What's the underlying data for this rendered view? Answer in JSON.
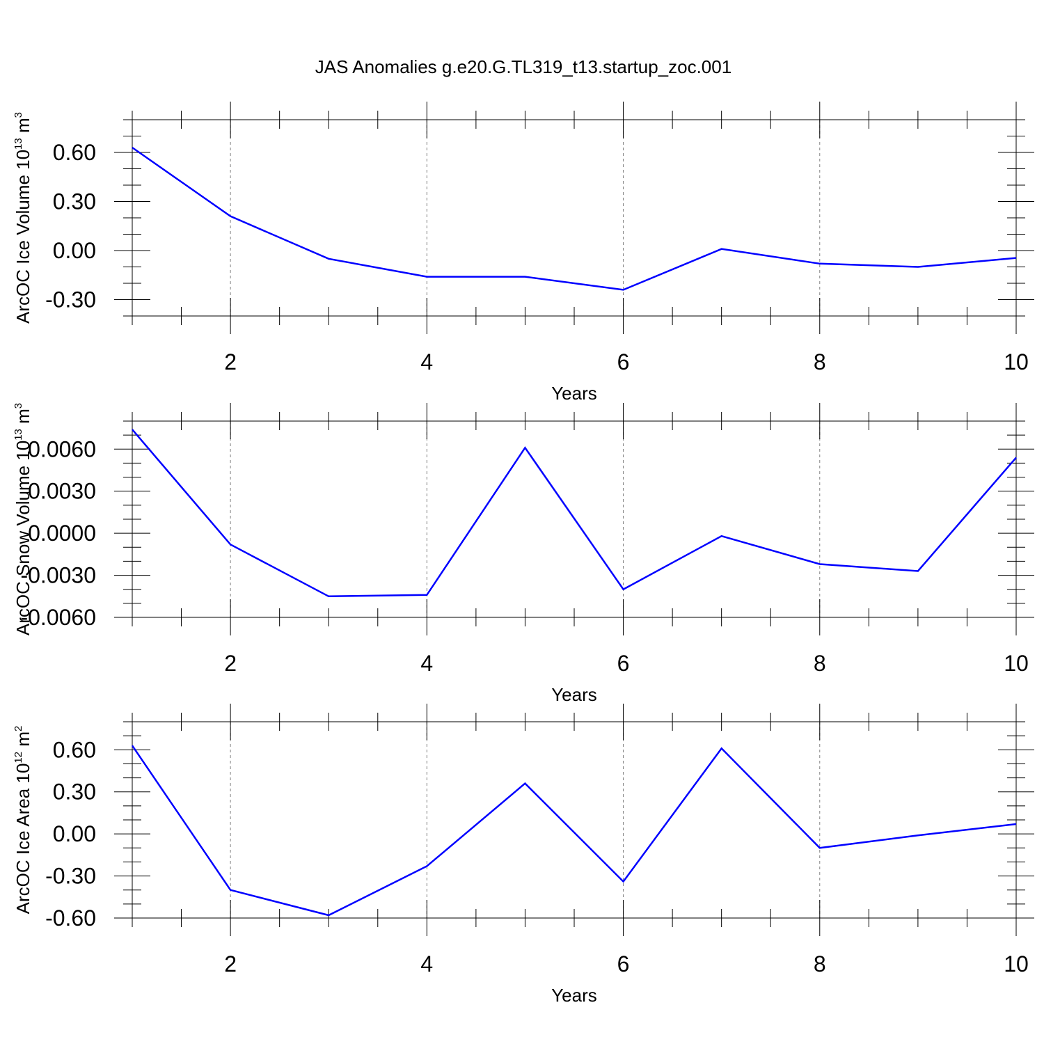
{
  "title": "JAS Anomalies g.e20.G.TL319_t13.startup_zoc.001",
  "colors": {
    "line": "#0000ff",
    "axis": "#000000",
    "grid": "#808080"
  },
  "chart_data": [
    {
      "type": "line",
      "xlabel": "Years",
      "ylabel": {
        "prefix": "ArcOC Ice Volume 10",
        "exp": "13",
        "unit": " m",
        "unit_exp": "3"
      },
      "xlim": [
        1,
        10
      ],
      "ylim": [
        -0.4,
        0.8
      ],
      "xticks": [
        2,
        4,
        6,
        8,
        10
      ],
      "xtick_labels": [
        "2",
        "4",
        "6",
        "8",
        "10"
      ],
      "yticks": [
        0.6,
        0.3,
        0.0,
        -0.3
      ],
      "ytick_labels": [
        "0.60",
        "0.30",
        "0.00",
        "-0.30"
      ],
      "grid": "vertical dashed at major x ticks",
      "series": [
        {
          "x": [
            1,
            2,
            3,
            4,
            5,
            6,
            7,
            8,
            9,
            10
          ],
          "values": [
            0.63,
            0.21,
            -0.05,
            -0.16,
            -0.16,
            -0.24,
            0.01,
            -0.08,
            -0.1,
            -0.045
          ]
        }
      ]
    },
    {
      "type": "line",
      "xlabel": "Years",
      "ylabel": {
        "prefix": "ArcOC Snow Volume 10",
        "exp": "13",
        "unit": " m",
        "unit_exp": "3"
      },
      "xlim": [
        1,
        10
      ],
      "ylim": [
        -0.006,
        0.008
      ],
      "xticks": [
        2,
        4,
        6,
        8,
        10
      ],
      "xtick_labels": [
        "2",
        "4",
        "6",
        "8",
        "10"
      ],
      "yticks": [
        0.006,
        0.003,
        0.0,
        -0.003,
        -0.006
      ],
      "ytick_labels": [
        "0.0060",
        "0.0030",
        "0.0000",
        "-0.0030",
        "-0.0060"
      ],
      "grid": "vertical dashed at major x ticks",
      "series": [
        {
          "x": [
            1,
            2,
            3,
            4,
            5,
            6,
            7,
            8,
            9,
            10
          ],
          "values": [
            0.0074,
            -0.0008,
            -0.0045,
            -0.0044,
            0.0061,
            -0.004,
            -0.0002,
            -0.0022,
            -0.0027,
            0.0054
          ]
        }
      ]
    },
    {
      "type": "line",
      "xlabel": "Years",
      "ylabel": {
        "prefix": "ArcOC Ice Area 10",
        "exp": "12",
        "unit": " m",
        "unit_exp": "2"
      },
      "xlim": [
        1,
        10
      ],
      "ylim": [
        -0.6,
        0.8
      ],
      "xticks": [
        2,
        4,
        6,
        8,
        10
      ],
      "xtick_labels": [
        "2",
        "4",
        "6",
        "8",
        "10"
      ],
      "yticks": [
        0.6,
        0.3,
        0.0,
        -0.3,
        -0.6
      ],
      "ytick_labels": [
        "0.60",
        "0.30",
        "0.00",
        "-0.30",
        "-0.60"
      ],
      "grid": "vertical dashed at major x ticks",
      "series": [
        {
          "x": [
            1,
            2,
            3,
            4,
            5,
            6,
            7,
            8,
            9,
            10
          ],
          "values": [
            0.63,
            -0.4,
            -0.58,
            -0.23,
            0.36,
            -0.34,
            0.61,
            -0.1,
            -0.01,
            0.07
          ]
        }
      ]
    }
  ]
}
